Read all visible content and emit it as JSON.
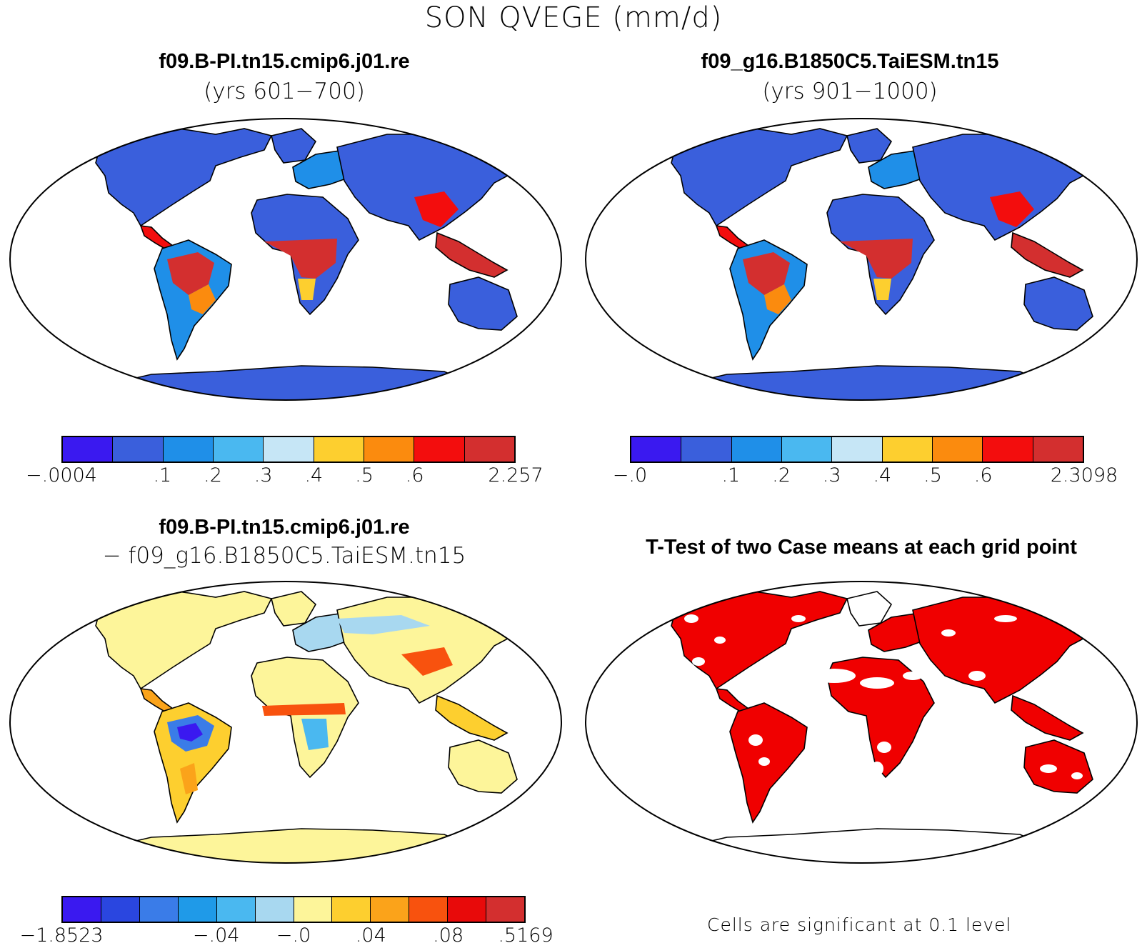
{
  "title": "SON QVEGE (mm/d)",
  "panels": [
    {
      "id": "case1",
      "title": "f09.B-PI.tn15.cmip6.j01.re",
      "subtitle": "(yrs 601−700)",
      "colorbar": {
        "colors": [
          "#3a19f0",
          "#3a5fdc",
          "#1f8fe8",
          "#4ab8f0",
          "#c6e6f6",
          "#fdcf2f",
          "#fb8b0e",
          "#f30d0d",
          "#d32f2f"
        ],
        "labels": [
          "−.0004",
          ".1",
          ".2",
          ".3",
          ".4",
          ".5",
          ".6",
          "2.257"
        ]
      }
    },
    {
      "id": "case2",
      "title": "f09_g16.B1850C5.TaiESM.tn15",
      "subtitle": "(yrs 901−1000)",
      "colorbar": {
        "colors": [
          "#3a19f0",
          "#3a5fdc",
          "#1f8fe8",
          "#4ab8f0",
          "#c6e6f6",
          "#fdcf2f",
          "#fb8b0e",
          "#f30d0d",
          "#d32f2f"
        ],
        "labels": [
          "−.0",
          ".1",
          ".2",
          ".3",
          ".4",
          ".5",
          ".6",
          "2.3098"
        ]
      }
    },
    {
      "id": "difference",
      "title": "f09.B-PI.tn15.cmip6.j01.re",
      "subtitle": "− f09_g16.B1850C5.TaiESM.tn15",
      "colorbar": {
        "colors": [
          "#3a19f0",
          "#2a46e0",
          "#3a7ce8",
          "#1f9ae8",
          "#4ab8f0",
          "#a8d8f0",
          "#fdf59a",
          "#fdcf2f",
          "#fba31a",
          "#f8520e",
          "#e80a0a",
          "#d32f2f"
        ],
        "labels": [
          "−1.8523",
          "−.04",
          "−.0",
          ".04",
          ".08",
          ".5169"
        ]
      }
    },
    {
      "id": "ttest",
      "title": "T-Test of two Case means at each grid point",
      "note": "Cells are significant at 0.1 level",
      "significant_color": "#f00000"
    }
  ]
}
